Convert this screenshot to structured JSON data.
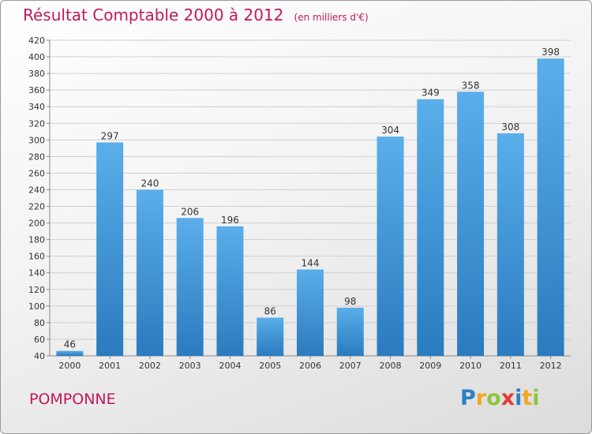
{
  "title": "Résultat Comptable 2000 à 2012",
  "subtitle": "(en milliers d'€)",
  "commune": "POMPONNE",
  "logo": {
    "letters": [
      {
        "ch": "P",
        "color": "#2e7fc4"
      },
      {
        "ch": "r",
        "color": "#f5a623"
      },
      {
        "ch": "o",
        "color": "#8cc63f"
      },
      {
        "ch": "x",
        "color": "#e53935"
      },
      {
        "ch": "i",
        "color": "#2e7fc4"
      },
      {
        "ch": "t",
        "color": "#f5a623"
      },
      {
        "ch": "i",
        "color": "#8cc63f"
      }
    ]
  },
  "chart_data": {
    "type": "bar",
    "categories": [
      "2000",
      "2001",
      "2002",
      "2003",
      "2004",
      "2005",
      "2006",
      "2007",
      "2008",
      "2009",
      "2010",
      "2011",
      "2012"
    ],
    "values": [
      46,
      297,
      240,
      206,
      196,
      86,
      144,
      98,
      304,
      349,
      358,
      308,
      398
    ],
    "ylim": [
      40,
      420
    ],
    "yticks": [
      40,
      60,
      80,
      100,
      120,
      140,
      160,
      180,
      200,
      220,
      240,
      260,
      280,
      300,
      320,
      340,
      360,
      380,
      400,
      420
    ],
    "grid": true,
    "bar_color": "#3a8fd6"
  }
}
